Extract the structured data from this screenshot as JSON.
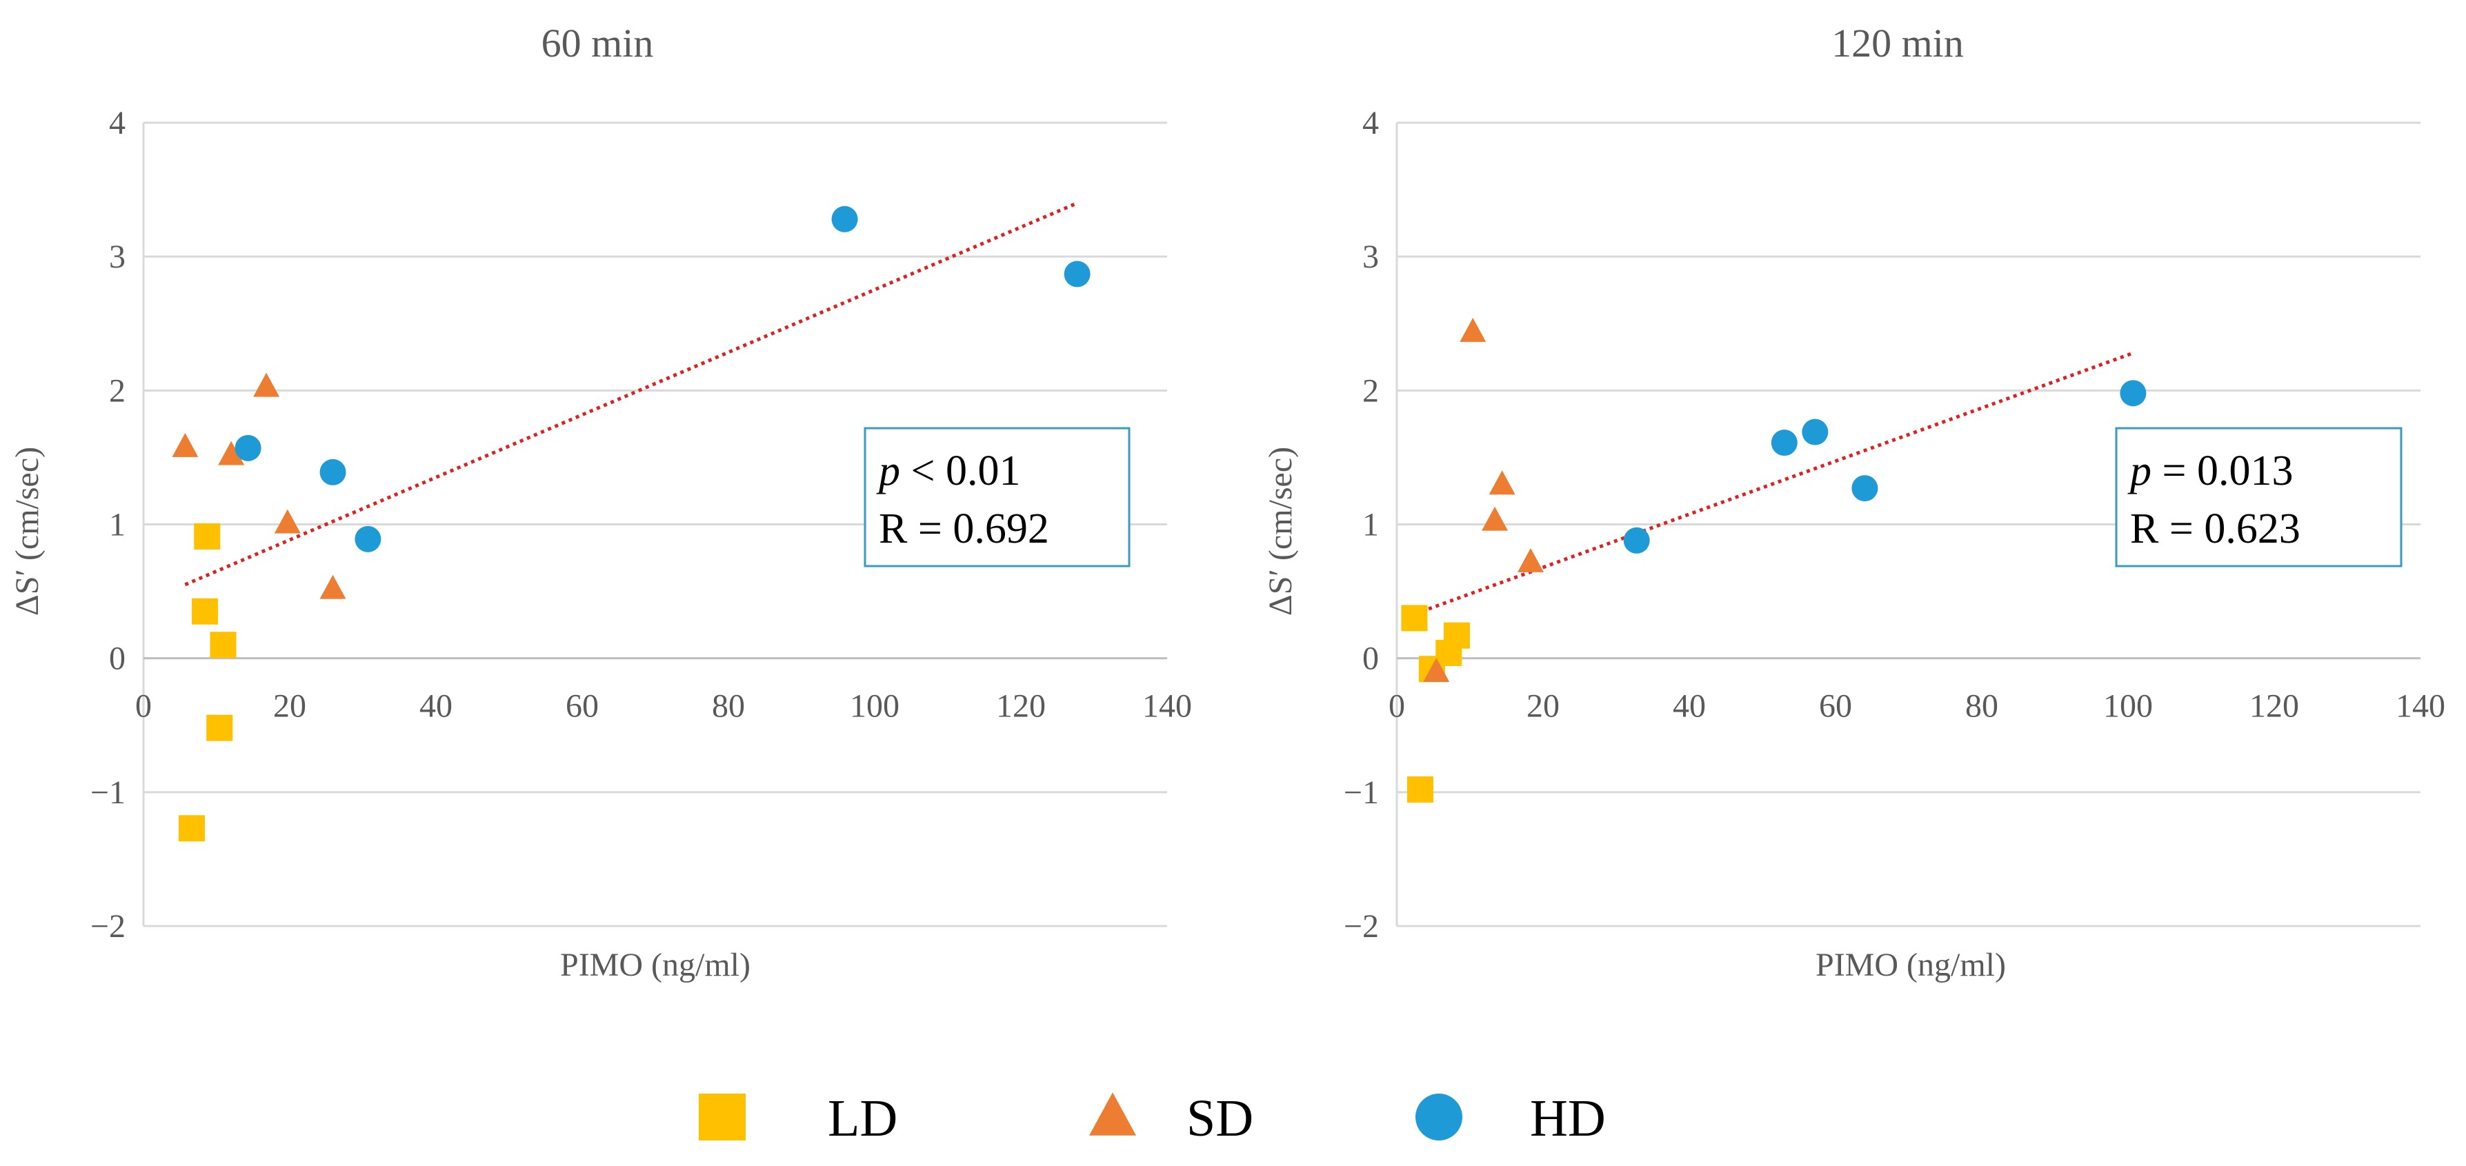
{
  "colors": {
    "LD": "#FFC000",
    "SD": "#ED7D31",
    "HD": "#1E9BD7",
    "trend": "#E02020",
    "grid": "#D9D9D9",
    "box": "#3A9BC1",
    "text": "#595959"
  },
  "legend": [
    {
      "label": "LD",
      "shape": "square-icon"
    },
    {
      "label": "SD",
      "shape": "triangle-icon"
    },
    {
      "label": "HD",
      "shape": "circle-icon"
    }
  ],
  "chart_data": [
    {
      "type": "scatter",
      "title": "60 min",
      "xlabel": "PIMO (ng/ml)",
      "ylabel": "ΔS′ (cm/sec)",
      "xlim": [
        0,
        140
      ],
      "ylim": [
        -2,
        4
      ],
      "xticks": [
        "0",
        "20",
        "40",
        "60",
        "80",
        "100",
        "120",
        "140"
      ],
      "yticks": [
        "−2",
        "−1",
        "0",
        "1",
        "2",
        "3",
        "4"
      ],
      "grid": true,
      "series": [
        {
          "name": "LD",
          "points": [
            [
              6.6,
              -1.27
            ],
            [
              10.4,
              -0.52
            ],
            [
              10.9,
              0.1
            ],
            [
              8.4,
              0.35
            ],
            [
              8.7,
              0.91
            ]
          ]
        },
        {
          "name": "SD",
          "points": [
            [
              5.7,
              1.58
            ],
            [
              12.0,
              1.52
            ],
            [
              16.8,
              2.03
            ],
            [
              19.7,
              1.01
            ],
            [
              25.9,
              0.52
            ]
          ]
        },
        {
          "name": "HD",
          "points": [
            [
              14.3,
              1.57
            ],
            [
              25.9,
              1.39
            ],
            [
              30.7,
              0.89
            ],
            [
              95.9,
              3.28
            ],
            [
              127.7,
              2.87
            ]
          ]
        }
      ],
      "trendline": {
        "x": [
          5.7,
          127.7
        ],
        "y": [
          0.55,
          3.4
        ]
      },
      "annotation": {
        "p_symbol": "p",
        "p_text": " < 0.01",
        "r_text": "R = 0.692"
      }
    },
    {
      "type": "scatter",
      "title": "120 min",
      "xlabel": "PIMO (ng/ml)",
      "ylabel": "ΔS′ (cm/sec)",
      "xlim": [
        0,
        140
      ],
      "ylim": [
        -2,
        4
      ],
      "xticks": [
        "0",
        "20",
        "40",
        "60",
        "80",
        "100",
        "120",
        "140"
      ],
      "yticks": [
        "−2",
        "−1",
        "0",
        "1",
        "2",
        "3",
        "4"
      ],
      "grid": true,
      "series": [
        {
          "name": "LD",
          "points": [
            [
              2.4,
              0.3
            ],
            [
              3.2,
              -0.98
            ],
            [
              4.8,
              -0.08
            ],
            [
              7.1,
              0.04
            ],
            [
              8.2,
              0.17
            ]
          ]
        },
        {
          "name": "SD",
          "points": [
            [
              5.4,
              -0.1
            ],
            [
              10.4,
              2.44
            ],
            [
              13.4,
              1.03
            ],
            [
              14.4,
              1.3
            ],
            [
              18.3,
              0.72
            ]
          ]
        },
        {
          "name": "HD",
          "points": [
            [
              32.8,
              0.88
            ],
            [
              53.0,
              1.61
            ],
            [
              57.2,
              1.69
            ],
            [
              64.0,
              1.27
            ],
            [
              100.7,
              1.98
            ]
          ]
        }
      ],
      "trendline": {
        "x": [
          2.4,
          100.7
        ],
        "y": [
          0.33,
          2.28
        ]
      },
      "annotation": {
        "p_symbol": "p",
        "p_text": " = 0.013",
        "r_text": "R = 0.623"
      }
    }
  ]
}
